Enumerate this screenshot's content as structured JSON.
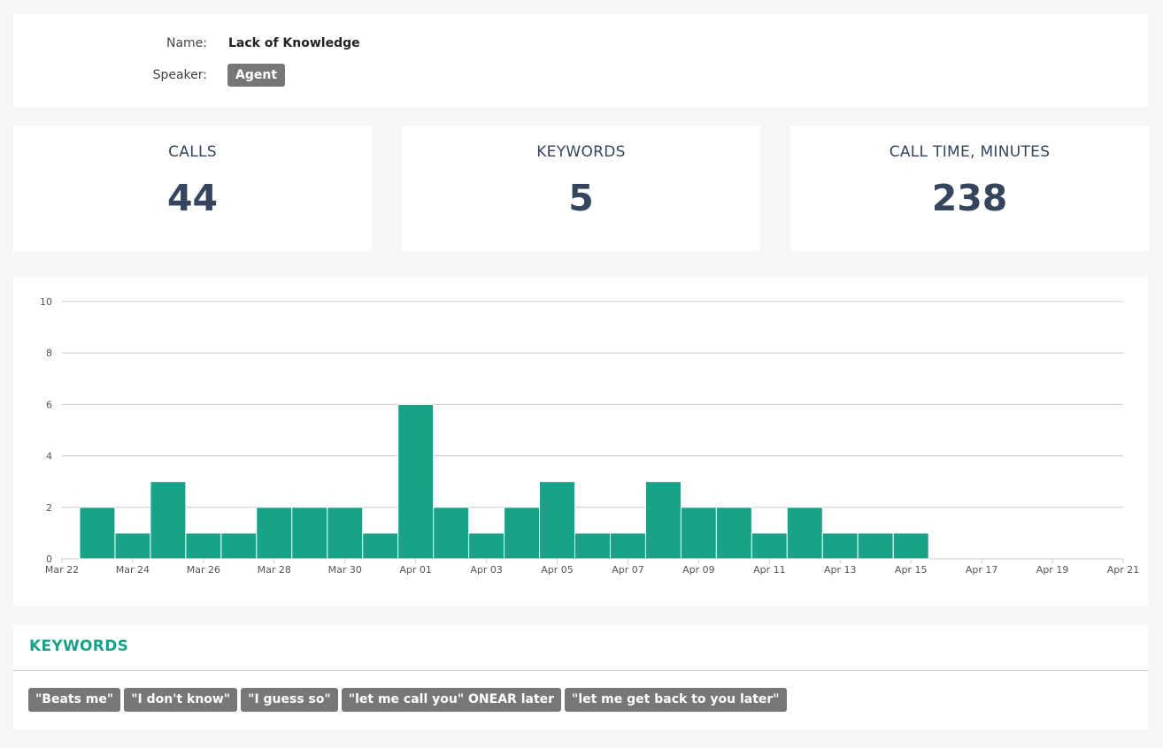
{
  "info": {
    "name_label": "Name:",
    "name_value": "Lack of Knowledge",
    "speaker_label": "Speaker:",
    "speaker_value": "Agent"
  },
  "stats": {
    "calls": {
      "label": "CALLS",
      "value": "44"
    },
    "keywords": {
      "label": "KEYWORDS",
      "value": "5"
    },
    "call_time": {
      "label": "CALL TIME, MINUTES",
      "value": "238"
    }
  },
  "chart_data": {
    "type": "bar",
    "title": "",
    "xlabel": "",
    "ylabel": "",
    "ylim": [
      0,
      10
    ],
    "yticks": [
      0,
      2,
      4,
      6,
      8,
      10
    ],
    "grid": true,
    "x_tick_labels": [
      "Mar 22",
      "Mar 24",
      "Mar 26",
      "Mar 28",
      "Mar 30",
      "Apr 01",
      "Apr 03",
      "Apr 05",
      "Apr 07",
      "Apr 09",
      "Apr 11",
      "Apr 13",
      "Apr 15",
      "Apr 17",
      "Apr 19",
      "Apr 21"
    ],
    "categories": [
      "Mar 23",
      "Mar 24",
      "Mar 25",
      "Mar 26",
      "Mar 27",
      "Mar 28",
      "Mar 29",
      "Mar 30",
      "Mar 31",
      "Apr 01",
      "Apr 02",
      "Apr 03",
      "Apr 04",
      "Apr 05",
      "Apr 06",
      "Apr 07",
      "Apr 08",
      "Apr 09",
      "Apr 10",
      "Apr 11",
      "Apr 12",
      "Apr 13",
      "Apr 14",
      "Apr 15"
    ],
    "values": [
      2,
      1,
      3,
      1,
      1,
      2,
      2,
      2,
      1,
      6,
      2,
      1,
      2,
      3,
      1,
      1,
      3,
      2,
      2,
      1,
      2,
      1,
      1,
      1
    ],
    "bar_color": "#18a287"
  },
  "keywords_section": {
    "title": "KEYWORDS",
    "items": [
      "\"Beats me\"",
      "\"I don't know\"",
      "\"I guess so\"",
      "\"let me call you\" ONEAR later",
      "\"let me get back to you later\""
    ]
  }
}
